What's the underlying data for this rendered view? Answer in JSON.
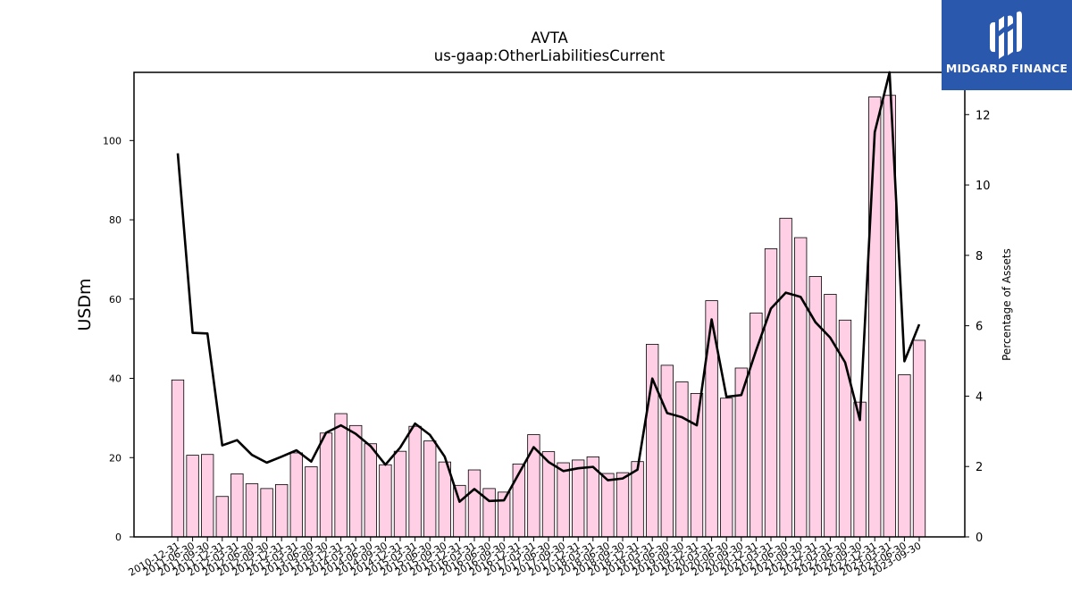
{
  "chart_data": {
    "type": "bar",
    "title": "AVTA",
    "subtitle": "us-gaap:OtherLiabilitiesCurrent",
    "ylabel": "USDm",
    "y2label": "Percentage of Assets",
    "ylim": [
      0,
      117.2
    ],
    "y2lim": [
      0,
      13.2
    ],
    "yticks": [
      0,
      20,
      40,
      60,
      80,
      100
    ],
    "y2ticks": [
      0,
      2,
      4,
      6,
      8,
      10,
      12
    ],
    "categories": [
      "2010-12-31",
      "2011-06-30",
      "2011-09-30",
      "2011-12-31",
      "2012-03-31",
      "2012-06-30",
      "2012-09-30",
      "2012-12-31",
      "2013-03-31",
      "2013-06-30",
      "2013-09-30",
      "2013-12-31",
      "2014-03-31",
      "2014-06-30",
      "2014-09-30",
      "2014-12-31",
      "2015-03-31",
      "2015-06-30",
      "2015-09-30",
      "2015-12-31",
      "2016-03-31",
      "2016-06-30",
      "2016-09-30",
      "2016-12-31",
      "2017-03-31",
      "2017-06-30",
      "2017-09-30",
      "2017-12-31",
      "2018-03-31",
      "2018-06-30",
      "2018-09-30",
      "2018-12-31",
      "2019-03-31",
      "2019-06-30",
      "2019-09-30",
      "2019-12-31",
      "2020-03-31",
      "2020-06-30",
      "2020-09-30",
      "2020-12-31",
      "2021-03-31",
      "2021-06-30",
      "2021-09-30",
      "2021-12-31",
      "2022-03-31",
      "2022-06-30",
      "2022-09-30",
      "2022-12-31",
      "2023-03-31",
      "2023-06-30",
      "2023-09-30"
    ],
    "series": [
      {
        "type": "bar",
        "axis": "left",
        "values": [
          39.6,
          20.6,
          20.8,
          10.2,
          15.9,
          13.4,
          12.2,
          13.2,
          21.2,
          17.7,
          26.2,
          31.1,
          28.1,
          23.5,
          18.2,
          21.6,
          27.9,
          24.2,
          18.9,
          13.0,
          16.9,
          12.2,
          11.3,
          18.4,
          25.8,
          21.5,
          18.7,
          19.4,
          20.2,
          16.0,
          16.2,
          19.0,
          48.6,
          43.3,
          39.1,
          36.2,
          59.6,
          35.0,
          42.6,
          56.5,
          72.7,
          80.4,
          75.5,
          65.7,
          61.2,
          54.7,
          34.0,
          111.0,
          111.4,
          40.9,
          49.6
        ],
        "fill": "#ffcfe6",
        "edge": "#000000"
      },
      {
        "type": "line",
        "axis": "right",
        "values": [
          10.9,
          5.8,
          5.78,
          2.6,
          2.75,
          2.33,
          2.11,
          2.28,
          2.46,
          2.14,
          2.96,
          3.17,
          2.93,
          2.58,
          2.05,
          2.54,
          3.22,
          2.9,
          2.28,
          1.0,
          1.36,
          1.02,
          1.04,
          1.8,
          2.55,
          2.13,
          1.87,
          1.95,
          1.99,
          1.61,
          1.66,
          1.91,
          4.5,
          3.52,
          3.4,
          3.17,
          6.18,
          3.98,
          4.03,
          5.3,
          6.49,
          6.94,
          6.82,
          6.1,
          5.66,
          4.96,
          3.32,
          11.5,
          13.2,
          4.99,
          6.04
        ],
        "color": "#000000"
      }
    ],
    "grid": false
  },
  "logo": {
    "text": "MIDGARD FINANCE",
    "bg": "#2a58ad"
  }
}
